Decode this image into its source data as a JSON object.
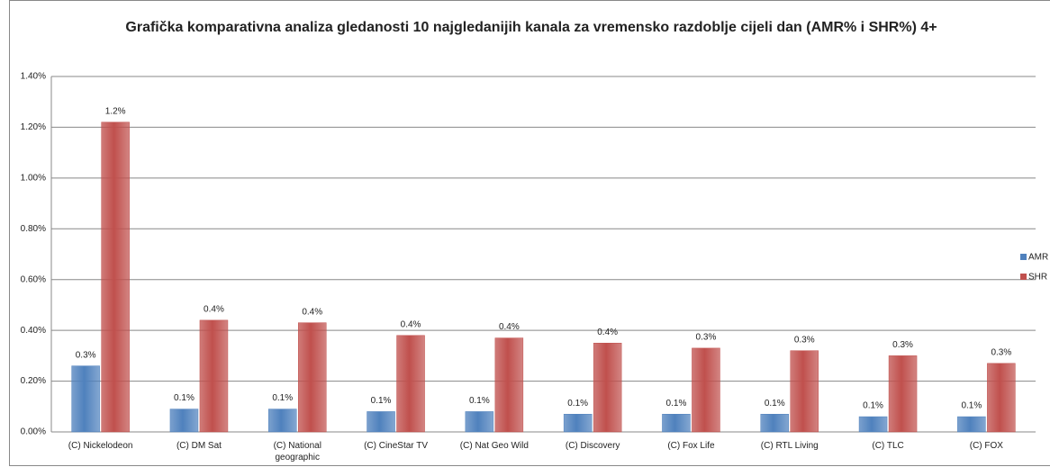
{
  "chart_data": {
    "type": "bar",
    "title": "Grafička komparativna analiza gledanosti 10 najgledanijih kanala za vremensko razdoblje cijeli dan (AMR% i SHR%) 4+",
    "categories": [
      "(C) Nickelodeon",
      "(C) DM Sat",
      "(C) National geographic",
      "(C) CineStar TV",
      "(C) Nat Geo Wild",
      "(C) Discovery",
      "(C) Fox Life",
      "(C) RTL Living",
      "(C) TLC",
      "(C) FOX"
    ],
    "series": [
      {
        "name": "AMR %",
        "color": "#4f81bd",
        "values": [
          0.26,
          0.09,
          0.09,
          0.08,
          0.08,
          0.07,
          0.07,
          0.07,
          0.06,
          0.06
        ],
        "value_labels": [
          "0.3%",
          "0.1%",
          "0.1%",
          "0.1%",
          "0.1%",
          "0.1%",
          "0.1%",
          "0.1%",
          "0.1%",
          "0.1%"
        ]
      },
      {
        "name": "SHR %",
        "color": "#c0504d",
        "values": [
          1.22,
          0.44,
          0.43,
          0.38,
          0.37,
          0.35,
          0.33,
          0.32,
          0.3,
          0.27
        ],
        "value_labels": [
          "1.2%",
          "0.4%",
          "0.4%",
          "0.4%",
          "0.4%",
          "0.4%",
          "0.3%",
          "0.3%",
          "0.3%",
          "0.3%"
        ]
      }
    ],
    "ylim": [
      0,
      1.4
    ],
    "yticks": [
      {
        "value": 0,
        "label": "0.00%"
      },
      {
        "value": 0.2,
        "label": "0.20%"
      },
      {
        "value": 0.4,
        "label": "0.40%"
      },
      {
        "value": 0.6,
        "label": "0.60%"
      },
      {
        "value": 0.8,
        "label": "0.80%"
      },
      {
        "value": 1.0,
        "label": "1.00%"
      },
      {
        "value": 1.2,
        "label": "1.20%"
      },
      {
        "value": 1.4,
        "label": "1.40%"
      }
    ],
    "grid": true,
    "legend": "right"
  }
}
